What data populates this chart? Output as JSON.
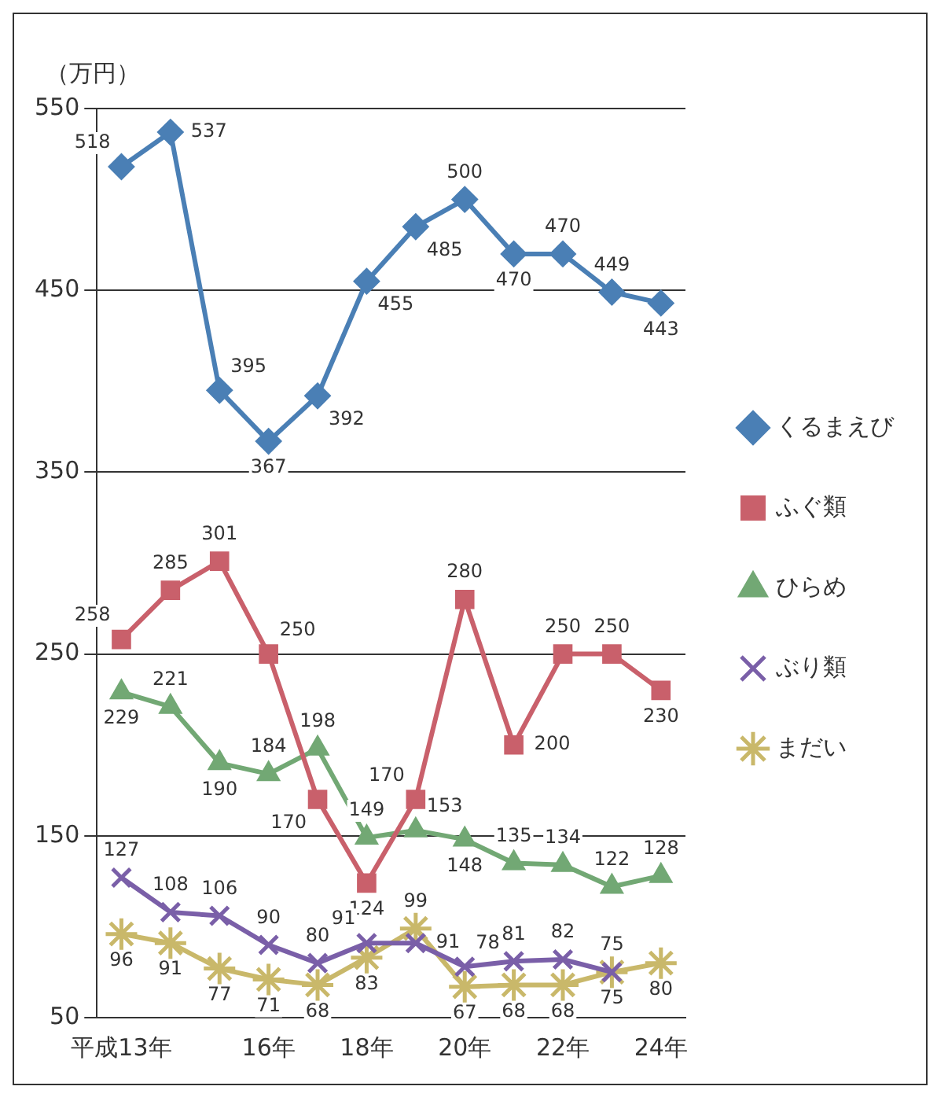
{
  "chart_data": {
    "type": "line",
    "ylabel": "（万円）",
    "categories": [
      "平成13年",
      null,
      null,
      "16年",
      null,
      "18年",
      null,
      "20年",
      null,
      "22年",
      null,
      "24年"
    ],
    "ylim": [
      50,
      550
    ],
    "yticks": [
      50,
      150,
      250,
      350,
      450,
      550
    ],
    "grid": "y",
    "legend": "right",
    "data_labels": true,
    "series": [
      {
        "name": "くるまえび",
        "color": "#4a7fb5",
        "marker": "diamond",
        "values": [
          518,
          537,
          395,
          367,
          392,
          455,
          485,
          500,
          470,
          470,
          449,
          443
        ]
      },
      {
        "name": "ふぐ類",
        "color": "#c9606b",
        "marker": "square",
        "values": [
          258,
          285,
          301,
          250,
          170,
          124,
          170,
          280,
          200,
          250,
          250,
          230
        ]
      },
      {
        "name": "ひらめ",
        "color": "#72a874",
        "marker": "triangle",
        "values": [
          229,
          221,
          190,
          184,
          198,
          149,
          153,
          148,
          135,
          134,
          122,
          128
        ]
      },
      {
        "name": "ぶり類",
        "color": "#7a5fa8",
        "marker": "cross",
        "values": [
          127,
          108,
          106,
          90,
          80,
          91,
          91,
          78,
          81,
          82,
          75,
          null
        ]
      },
      {
        "name": "まだい",
        "color": "#c9b86a",
        "marker": "cross",
        "values": [
          96,
          91,
          77,
          71,
          68,
          83,
          99,
          67,
          68,
          68,
          75,
          80
        ]
      }
    ]
  }
}
